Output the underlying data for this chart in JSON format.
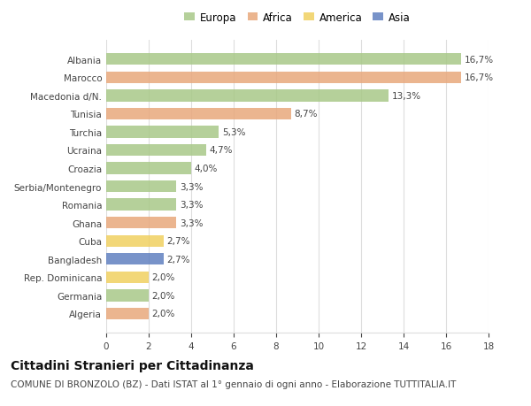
{
  "title": "Cittadini Stranieri per Cittadinanza",
  "subtitle": "COMUNE DI BRONZOLO (BZ) - Dati ISTAT al 1° gennaio di ogni anno - Elaborazione TUTTITALIA.IT",
  "legend_labels": [
    "Europa",
    "Africa",
    "America",
    "Asia"
  ],
  "legend_colors": [
    "#a8c888",
    "#e8a87c",
    "#f0d060",
    "#6080c0"
  ],
  "categories": [
    "Albania",
    "Marocco",
    "Macedonia d/N.",
    "Tunisia",
    "Turchia",
    "Ucraina",
    "Croazia",
    "Serbia/Montenegro",
    "Romania",
    "Ghana",
    "Cuba",
    "Bangladesh",
    "Rep. Dominicana",
    "Germania",
    "Algeria"
  ],
  "values": [
    16.7,
    16.7,
    13.3,
    8.7,
    5.3,
    4.7,
    4.0,
    3.3,
    3.3,
    3.3,
    2.7,
    2.7,
    2.0,
    2.0,
    2.0
  ],
  "bar_colors": [
    "#a8c888",
    "#e8a87c",
    "#a8c888",
    "#e8a87c",
    "#a8c888",
    "#a8c888",
    "#a8c888",
    "#a8c888",
    "#a8c888",
    "#e8a87c",
    "#f0d060",
    "#6080c0",
    "#f0d060",
    "#a8c888",
    "#e8a87c"
  ],
  "labels": [
    "16,7%",
    "16,7%",
    "13,3%",
    "8,7%",
    "5,3%",
    "4,7%",
    "4,0%",
    "3,3%",
    "3,3%",
    "3,3%",
    "2,7%",
    "2,7%",
    "2,0%",
    "2,0%",
    "2,0%"
  ],
  "xlim": [
    0,
    18
  ],
  "xticks": [
    0,
    2,
    4,
    6,
    8,
    10,
    12,
    14,
    16,
    18
  ],
  "background_color": "#ffffff",
  "grid_color": "#dddddd",
  "bar_height": 0.65,
  "title_fontsize": 10,
  "subtitle_fontsize": 7.5,
  "label_fontsize": 7.5,
  "tick_fontsize": 7.5,
  "legend_fontsize": 8.5
}
